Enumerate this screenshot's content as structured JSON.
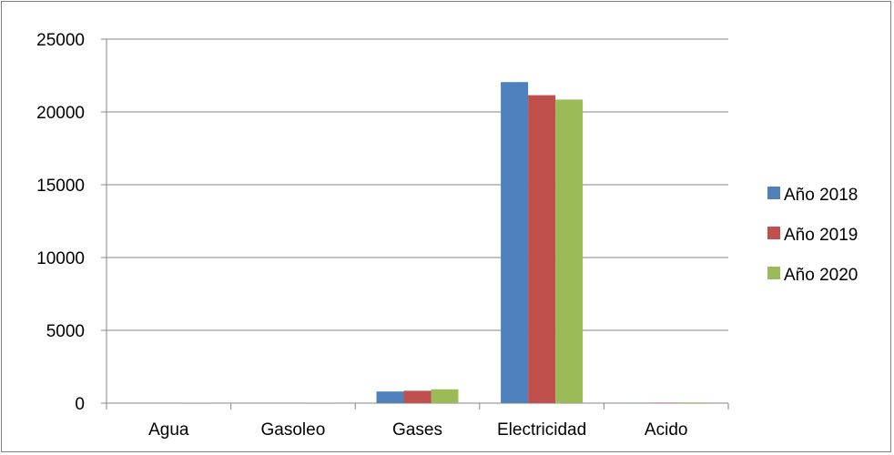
{
  "chart_data": {
    "type": "bar",
    "title": "",
    "xlabel": "",
    "ylabel": "",
    "categories": [
      "Agua",
      "Gasoleo",
      "Gases",
      "Electricidad",
      "Acido"
    ],
    "series": [
      {
        "name": "Año 2018",
        "color": "#4f81bd",
        "values": [
          5,
          5,
          800,
          22050,
          15
        ]
      },
      {
        "name": "Año 2019",
        "color": "#c0504d",
        "values": [
          5,
          5,
          850,
          21150,
          30
        ]
      },
      {
        "name": "Año 2020",
        "color": "#9bbb59",
        "values": [
          5,
          5,
          950,
          20850,
          45
        ]
      }
    ],
    "ylim": [
      0,
      25000
    ],
    "yticks": [
      0,
      5000,
      10000,
      15000,
      20000,
      25000
    ],
    "grid": true,
    "legend_position": "right"
  }
}
